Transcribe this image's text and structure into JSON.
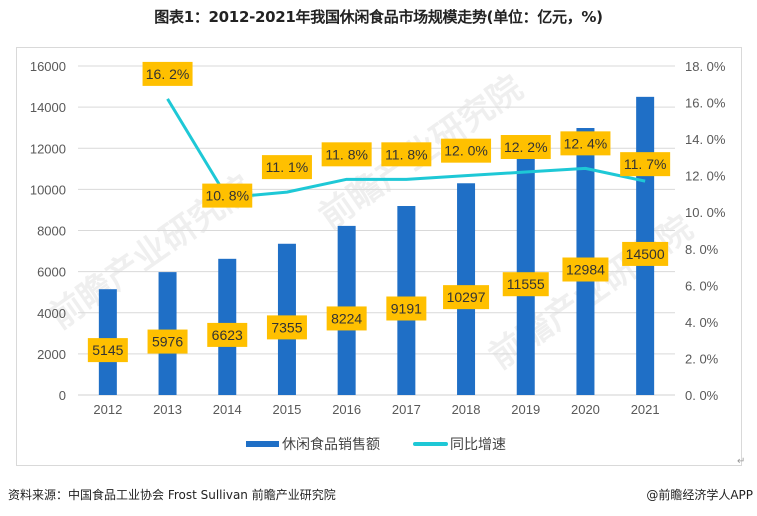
{
  "title": "图表1：2012-2021年我国休闲食品市场规模走势(单位：亿元，%)",
  "source": "资料来源：中国食品工业协会 Frost Sullivan 前瞻产业研究院",
  "credit": "@前瞻经济学人APP",
  "watermark": "前瞻产业研究院",
  "return_mark": "↵",
  "chart_data": {
    "type": "bar",
    "title": "图表1：2012-2021年我国休闲食品市场规模走势(单位：亿元，%)",
    "categories": [
      "2012",
      "2013",
      "2014",
      "2015",
      "2016",
      "2017",
      "2018",
      "2019",
      "2020",
      "2021"
    ],
    "series": [
      {
        "name": "休闲食品销售额",
        "type": "bar",
        "axis": "left",
        "color": "#1f6fc6",
        "values": [
          5145,
          5976,
          6623,
          7355,
          8224,
          9191,
          10297,
          11555,
          12984,
          14500
        ],
        "labels": [
          "5145",
          "5976",
          "6623",
          "7355",
          "8224",
          "9191",
          "10297",
          "11555",
          "12984",
          "14500"
        ]
      },
      {
        "name": "同比增速",
        "type": "line",
        "axis": "right",
        "color": "#1ec8d6",
        "values": [
          null,
          16.2,
          10.8,
          11.1,
          11.8,
          11.8,
          12.0,
          12.2,
          12.4,
          11.7
        ],
        "labels": [
          null,
          "16. 2%",
          "10. 8%",
          "11. 1%",
          "11. 8%",
          "11. 8%",
          "12. 0%",
          "12. 2%",
          "12. 4%",
          "11. 7%"
        ]
      }
    ],
    "left_axis": {
      "ylim": [
        0,
        16000
      ],
      "ticks": [
        "0",
        "2000",
        "4000",
        "6000",
        "8000",
        "10000",
        "12000",
        "14000",
        "16000"
      ]
    },
    "right_axis": {
      "ylim": [
        0,
        18
      ],
      "ticks": [
        "0. 0%",
        "2. 0%",
        "4. 0%",
        "6. 0%",
        "8. 0%",
        "10. 0%",
        "12. 0%",
        "14. 0%",
        "16. 0%",
        "18. 0%"
      ]
    },
    "label_box_color": "#ffc000",
    "grid": true,
    "legend": "bottom",
    "xlabel": "",
    "ylabel": ""
  }
}
